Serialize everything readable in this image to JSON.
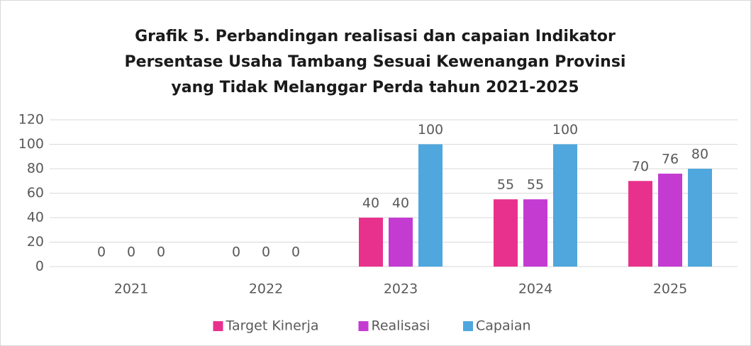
{
  "chart_data": {
    "type": "bar",
    "title": [
      "Grafik 5. Perbandingan realisasi dan capaian Indikator",
      "Persentase Usaha Tambang Sesuai Kewenangan Provinsi",
      "yang Tidak Melanggar Perda tahun 2021-2025"
    ],
    "categories": [
      "2021",
      "2022",
      "2023",
      "2024",
      "2025"
    ],
    "series": [
      {
        "name": "Target Kinerja",
        "color": "#e8318c",
        "values": [
          0,
          0,
          40,
          55,
          70
        ]
      },
      {
        "name": "Realisasi",
        "color": "#c43bd2",
        "values": [
          0,
          0,
          40,
          55,
          76
        ]
      },
      {
        "name": "Capaian",
        "color": "#4fa7dd",
        "values": [
          0,
          0,
          100,
          100,
          80
        ]
      }
    ],
    "ylim": [
      0,
      120
    ],
    "yticks": [
      0,
      20,
      40,
      60,
      80,
      100,
      120
    ],
    "grid": true,
    "legend": "bottom"
  }
}
